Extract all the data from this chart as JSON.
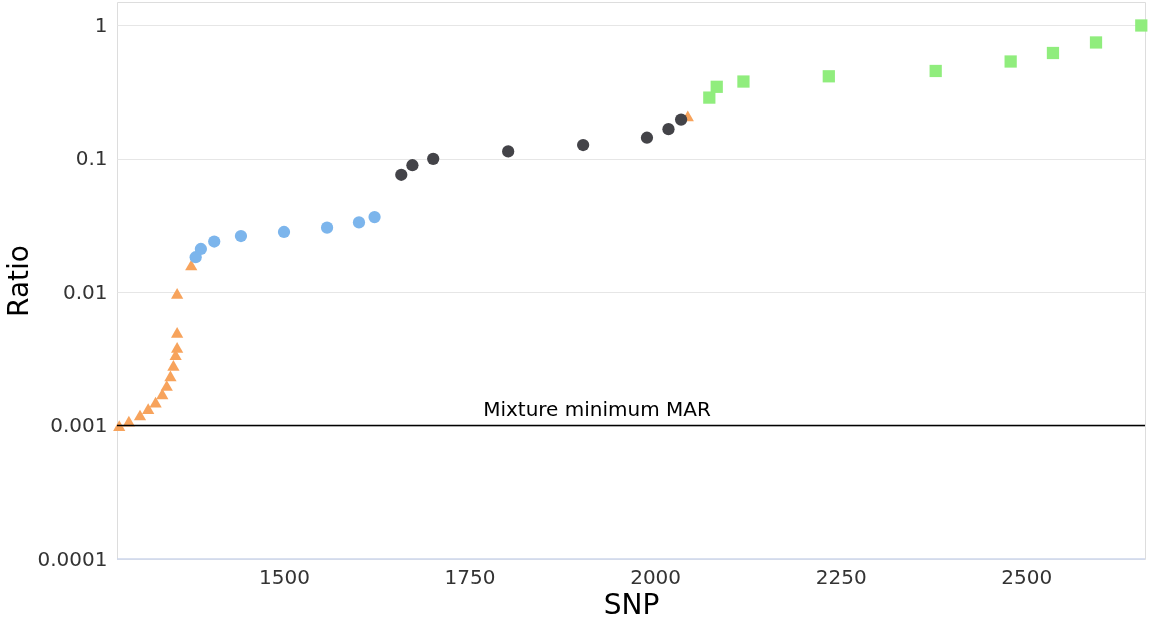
{
  "chart_data": {
    "type": "scatter",
    "xlabel": "SNP",
    "ylabel": "Ratio",
    "log": "y",
    "xlim": [
      1275,
      2660
    ],
    "xticks": [
      1500,
      1750,
      2000,
      2250,
      2500
    ],
    "ylim": [
      0.0001,
      1.5
    ],
    "yticks": [
      0.0001,
      0.001,
      0.01,
      0.1,
      1
    ],
    "grid": "y",
    "ref_lines": [
      {
        "axis": "y",
        "value": 0.001,
        "label": "Mixture minimum MAR",
        "color": "#000000"
      }
    ],
    "series": [
      {
        "color": "#f7a35c",
        "marker": "triangle",
        "x": [
          1278,
          1291,
          1306,
          1317,
          1327,
          1336,
          1342,
          1347,
          1351,
          1354,
          1356,
          1356,
          1356,
          1375,
          2044
        ],
        "values": [
          0.001,
          0.00108,
          0.0012,
          0.00134,
          0.0015,
          0.00173,
          0.002,
          0.00236,
          0.00283,
          0.0034,
          0.00386,
          0.005,
          0.0098,
          0.016,
          0.21
        ]
      },
      {
        "color": "#7cb5ec",
        "marker": "circle",
        "x": [
          1381,
          1388,
          1406,
          1442,
          1500,
          1558,
          1601,
          1622
        ],
        "values": [
          0.0183,
          0.0211,
          0.024,
          0.0264,
          0.0283,
          0.0305,
          0.0334,
          0.0366
        ]
      },
      {
        "color": "#434348",
        "marker": "circle",
        "x": [
          1658,
          1673,
          1701,
          1802,
          1903,
          1989,
          2018,
          2035
        ],
        "values": [
          0.076,
          0.0896,
          0.1,
          0.1137,
          0.127,
          0.144,
          0.167,
          0.197
        ]
      },
      {
        "color": "#90ed7d",
        "marker": "square",
        "x": [
          2073,
          2083,
          2119,
          2234,
          2378,
          2479,
          2536,
          2594,
          2655
        ],
        "values": [
          0.288,
          0.347,
          0.38,
          0.416,
          0.456,
          0.537,
          0.622,
          0.746,
          1.0
        ]
      }
    ]
  }
}
